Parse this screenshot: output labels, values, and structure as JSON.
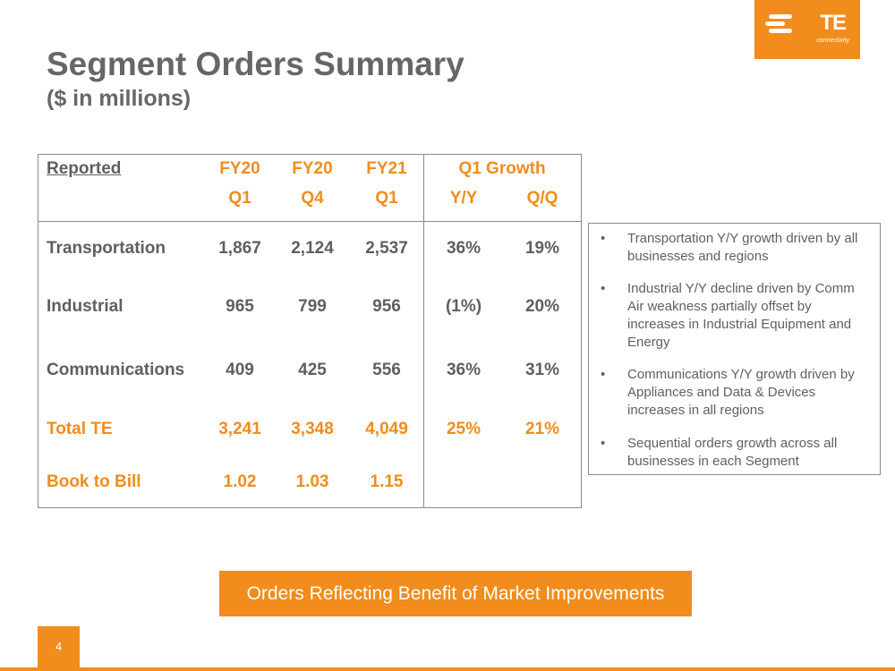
{
  "logo": {
    "text": "TE",
    "sub": "connectivity",
    "color": "#f28c1c"
  },
  "title": "Segment Orders Summary",
  "subtitle": "($ in millions)",
  "table": {
    "header_row1": {
      "reported": "Reported",
      "c1": "FY20",
      "c2": "FY20",
      "c3": "FY21",
      "growth": "Q1 Growth"
    },
    "header_row2": {
      "c1": "Q1",
      "c2": "Q4",
      "c3": "Q1",
      "yy": "Y/Y",
      "qq": "Q/Q"
    },
    "rows": [
      {
        "label": "Transportation",
        "c1": "1,867",
        "c2": "2,124",
        "c3": "2,537",
        "yy": "36%",
        "qq": "19%"
      },
      {
        "label": "Industrial",
        "c1": "965",
        "c2": "799",
        "c3": "956",
        "yy": "(1%)",
        "qq": "20%"
      },
      {
        "label": "Communications",
        "c1": "409",
        "c2": "425",
        "c3": "556",
        "yy": "36%",
        "qq": "31%"
      },
      {
        "label": "Total TE",
        "c1": "3,241",
        "c2": "3,348",
        "c3": "4,049",
        "yy": "25%",
        "qq": "21%"
      },
      {
        "label": "Book to Bill",
        "c1": "1.02",
        "c2": "1.03",
        "c3": "1.15",
        "yy": "",
        "qq": ""
      }
    ]
  },
  "notes": [
    "Transportation Y/Y growth driven by all businesses and regions",
    "Industrial Y/Y decline driven by Comm Air weakness partially offset by increases in Industrial Equipment and Energy",
    "Communications Y/Y growth driven by Appliances and Data & Devices increases in all regions",
    "Sequential orders growth across all businesses in each Segment"
  ],
  "bullet_char": "•",
  "banner": "Orders Reflecting Benefit of Market Improvements",
  "page_number": "4",
  "colors": {
    "accent": "#f28c1c",
    "text": "#5f5f5f"
  }
}
